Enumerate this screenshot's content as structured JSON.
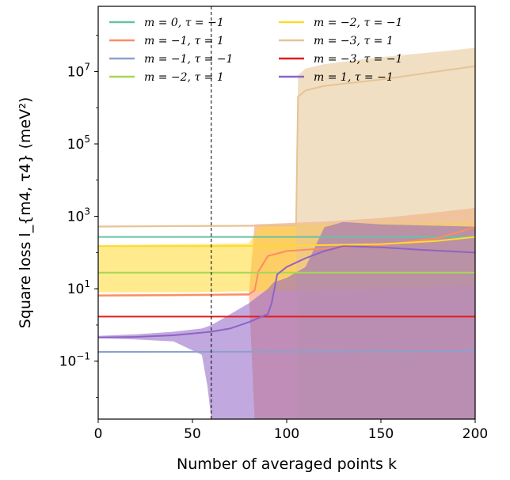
{
  "chart_data": {
    "type": "line",
    "xlabel": "Number of averaged points k",
    "ylabel": "Square loss l_{m4, τ4} (meV²)",
    "xlim": [
      0,
      200
    ],
    "ylim_log10": [
      -2.6,
      8.8
    ],
    "y_scale": "log",
    "x_ticks": [
      0,
      50,
      100,
      150,
      200
    ],
    "x_tick_labels": [
      "0",
      "50",
      "100",
      "150",
      "200"
    ],
    "y_ticks_log10": [
      -1,
      1,
      3,
      5,
      7
    ],
    "y_tick_labels": [
      {
        "base": "10",
        "exp": "−1"
      },
      {
        "base": "10",
        "exp": "1"
      },
      {
        "base": "10",
        "exp": "3"
      },
      {
        "base": "10",
        "exp": "5"
      },
      {
        "base": "10",
        "exp": "7"
      }
    ],
    "vline_x": 60,
    "legend_position": "top",
    "grid": false,
    "series": [
      {
        "label": "m = 0, τ = −1",
        "color": "#66c2a5",
        "x": [
          0,
          200
        ],
        "y": [
          270,
          270
        ],
        "band": null
      },
      {
        "label": "m = −1, τ = 1",
        "color": "#fc8d62",
        "x": [
          0,
          20,
          40,
          60,
          80,
          83,
          85,
          90,
          100,
          120,
          150,
          180,
          200
        ],
        "y": [
          6.5,
          6.6,
          6.7,
          6.8,
          7.0,
          9,
          30,
          80,
          110,
          130,
          160,
          250,
          500
        ],
        "band": {
          "x": [
            0,
            20,
            40,
            60,
            80,
            83,
            90,
            100,
            120,
            150,
            180,
            200
          ],
          "lower": [
            6.0,
            6.1,
            6.2,
            6.3,
            6.4,
            0.0025,
            0.0025,
            0.0025,
            0.0025,
            0.0025,
            0.0025,
            0.0025
          ],
          "upper": [
            7.0,
            7.1,
            7.2,
            7.3,
            7.6,
            600,
            620,
            650,
            720,
            900,
            1300,
            1700
          ]
        }
      },
      {
        "label": "m = −1, τ = −1",
        "color": "#8da0cb",
        "x": [
          0,
          100,
          200
        ],
        "y": [
          0.18,
          0.182,
          0.19
        ],
        "band": null
      },
      {
        "label": "m = −2, τ = 1",
        "color": "#a6d854",
        "x": [
          0,
          200
        ],
        "y": [
          28,
          28
        ],
        "band": null
      },
      {
        "label": "m = −2, τ = −1",
        "color": "#ffd92f",
        "x": [
          0,
          50,
          100,
          150,
          180,
          200
        ],
        "y": [
          150,
          150,
          155,
          170,
          210,
          270
        ],
        "band": {
          "x": [
            0,
            50,
            80,
            85,
            90,
            100,
            150,
            200
          ],
          "lower": [
            8,
            8,
            8.5,
            8.5,
            8.5,
            9,
            10,
            12
          ],
          "upper": [
            160,
            170,
            180,
            500,
            550,
            600,
            650,
            700
          ]
        }
      },
      {
        "label": "m = −3, τ = 1",
        "color": "#e5c494",
        "x": [
          0,
          50,
          100,
          105,
          106,
          110,
          120,
          150,
          180,
          200
        ],
        "y": [
          520,
          540,
          560,
          570,
          2000000,
          3000000,
          4000000,
          6000000,
          10000000,
          14000000
        ],
        "band": {
          "x": [
            0,
            50,
            100,
            105,
            106,
            110,
            120,
            150,
            180,
            200
          ],
          "lower": [
            500,
            510,
            520,
            530,
            0.0025,
            0.0025,
            0.0025,
            0.0025,
            0.0025,
            0.0025
          ],
          "upper": [
            560,
            570,
            590,
            610,
            8000000,
            12000000,
            16000000,
            25000000,
            35000000,
            45000000
          ]
        }
      },
      {
        "label": "m = −3, τ = −1",
        "color": "#e41a1c",
        "x": [
          0,
          200
        ],
        "y": [
          1.7,
          1.7
        ],
        "band": null
      },
      {
        "label": "m = 1, τ = −1",
        "color": "#8e63c5",
        "x": [
          0,
          20,
          40,
          60,
          70,
          80,
          90,
          92,
          95,
          100,
          110,
          120,
          130,
          150,
          170,
          200
        ],
        "y": [
          0.45,
          0.47,
          0.52,
          0.65,
          0.8,
          1.2,
          2.0,
          4,
          25,
          40,
          70,
          110,
          150,
          140,
          120,
          100
        ],
        "band": {
          "x": [
            0,
            20,
            40,
            55,
            58,
            60,
            63,
            80,
            90,
            93,
            100,
            110,
            120,
            130,
            150,
            180,
            200
          ],
          "lower": [
            0.43,
            0.4,
            0.35,
            0.15,
            0.02,
            0.0025,
            0.0025,
            0.0025,
            0.0025,
            0.0025,
            0.0025,
            0.0025,
            0.0025,
            0.0025,
            0.0025,
            0.0025,
            0.0025
          ],
          "upper": [
            0.5,
            0.55,
            0.65,
            0.8,
            0.9,
            1.0,
            1.2,
            4,
            10,
            15,
            20,
            40,
            500,
            700,
            600,
            550,
            520
          ]
        }
      }
    ]
  }
}
